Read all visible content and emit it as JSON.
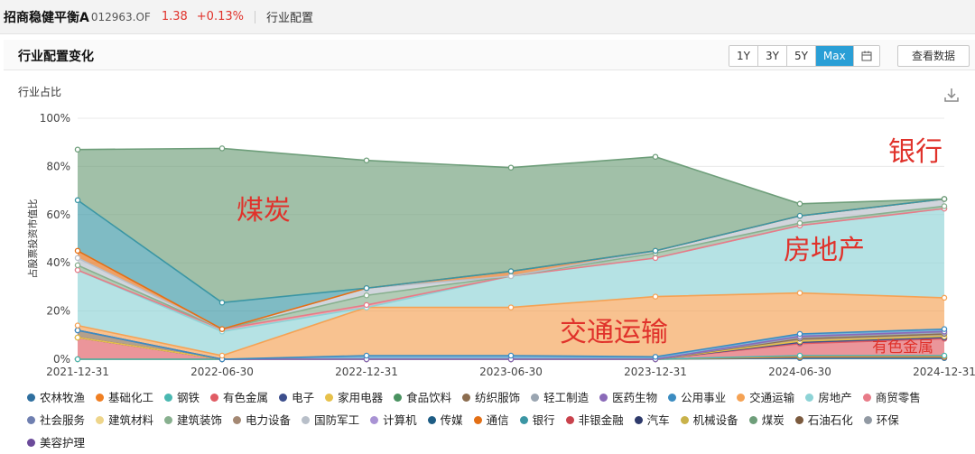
{
  "fund": {
    "name": "招商稳健平衡A",
    "code": "012963.OF",
    "price": "1.38",
    "change": "+0.13%",
    "section": "行业配置"
  },
  "panel": {
    "title": "行业配置变化",
    "range_buttons": [
      "1Y",
      "3Y",
      "5Y",
      "Max"
    ],
    "active_range": "Max",
    "view_data_label": "查看数据"
  },
  "chart_data": {
    "type": "area",
    "stacked": true,
    "subtitle": "行业占比",
    "ylabel": "占股票投资市值比",
    "ylim": [
      0,
      100
    ],
    "y_ticks": [
      "0%",
      "20%",
      "40%",
      "60%",
      "80%",
      "100%"
    ],
    "x": [
      "2021-12-31",
      "2022-06-30",
      "2022-12-31",
      "2023-06-30",
      "2023-12-31",
      "2024-06-30",
      "2024-12-31"
    ],
    "series": [
      {
        "name": "农林牧渔",
        "color": "#2f6f9f",
        "values": [
          0,
          0,
          0,
          0,
          0,
          0.5,
          0.5
        ]
      },
      {
        "name": "基础化工",
        "color": "#f07f22",
        "values": [
          0,
          0,
          0,
          0,
          0,
          0.5,
          0.5
        ]
      },
      {
        "name": "钢铁",
        "color": "#4ab8b1",
        "values": [
          0,
          0,
          0,
          0,
          0,
          0.5,
          0.5
        ]
      },
      {
        "name": "有色金属",
        "color": "#e05c64",
        "values": [
          9,
          0,
          0,
          0,
          0,
          5,
          7
        ]
      },
      {
        "name": "电子",
        "color": "#3c4e8c",
        "values": [
          0,
          0,
          0,
          0,
          0,
          0.5,
          0.5
        ]
      },
      {
        "name": "家用电器",
        "color": "#e7c14a",
        "values": [
          0,
          0,
          0,
          0,
          0,
          0.5,
          0.5
        ]
      },
      {
        "name": "食品饮料",
        "color": "#4a9260",
        "values": [
          0,
          0,
          0,
          0,
          0,
          0,
          0
        ]
      },
      {
        "name": "纺织服饰",
        "color": "#8c6d4f",
        "values": [
          3,
          0,
          0,
          0,
          0,
          1,
          1
        ]
      },
      {
        "name": "轻工制造",
        "color": "#9aa5b1",
        "values": [
          0,
          0,
          0,
          0,
          0,
          0.5,
          0.5
        ]
      },
      {
        "name": "医药生物",
        "color": "#8a6ab8",
        "values": [
          0,
          0,
          0,
          0,
          0,
          0.5,
          0.5
        ]
      },
      {
        "name": "公用事业",
        "color": "#3b8cc1",
        "values": [
          0,
          0,
          1.5,
          1.5,
          1,
          1,
          1
        ]
      },
      {
        "name": "交通运输",
        "color": "#f5a254",
        "values": [
          2,
          1.5,
          20,
          20,
          25,
          17,
          13
        ]
      },
      {
        "name": "房地产",
        "color": "#8dd3d6",
        "values": [
          23,
          10,
          0,
          13,
          16,
          28,
          37
        ]
      },
      {
        "name": "商贸零售",
        "color": "#e87b88",
        "values": [
          0,
          1,
          1,
          0,
          0,
          0,
          0
        ]
      },
      {
        "name": "社会服务",
        "color": "#6f7fb0",
        "values": [
          0,
          0,
          0,
          0,
          0,
          0,
          0
        ]
      },
      {
        "name": "建筑材料",
        "color": "#eed58a",
        "values": [
          0,
          0,
          0,
          0,
          0,
          0,
          0
        ]
      },
      {
        "name": "建筑装饰",
        "color": "#88b08f",
        "values": [
          2,
          0,
          4,
          0,
          2,
          1,
          1
        ]
      },
      {
        "name": "电力设备",
        "color": "#a48873",
        "values": [
          0,
          0,
          0,
          0,
          0,
          0,
          0
        ]
      },
      {
        "name": "国防军工",
        "color": "#b8bfc9",
        "values": [
          3,
          0,
          3,
          0,
          1,
          3,
          3
        ]
      },
      {
        "name": "计算机",
        "color": "#a993d4",
        "values": [
          0,
          0,
          0,
          0,
          0,
          0,
          0
        ]
      },
      {
        "name": "传媒",
        "color": "#1d5c84",
        "values": [
          0,
          0,
          0,
          0,
          0,
          0,
          0
        ]
      },
      {
        "name": "通信",
        "color": "#e36f15",
        "values": [
          3,
          0,
          0,
          2,
          0,
          0,
          0
        ]
      },
      {
        "name": "银行",
        "color": "#3b96a4",
        "values": [
          21,
          11,
          0,
          0,
          0,
          0,
          0
        ]
      },
      {
        "name": "非银金融",
        "color": "#c9424c",
        "values": [
          0,
          0,
          0,
          0,
          0,
          0,
          0
        ]
      },
      {
        "name": "汽车",
        "color": "#2e3a6b",
        "values": [
          0,
          0,
          0,
          0,
          0,
          0,
          0
        ]
      },
      {
        "name": "机械设备",
        "color": "#c9b24a",
        "values": [
          0,
          0,
          0,
          0,
          0,
          0,
          0
        ]
      },
      {
        "name": "煤炭",
        "color": "#6e9e7a",
        "values": [
          21,
          64,
          53,
          43,
          39,
          5,
          0
        ]
      },
      {
        "name": "石油石化",
        "color": "#7b5a3e",
        "values": [
          0,
          0,
          0,
          0,
          0,
          0,
          0
        ]
      },
      {
        "name": "环保",
        "color": "#9199a3",
        "values": [
          0,
          0,
          0,
          0,
          0,
          0,
          0
        ]
      },
      {
        "name": "美容护理",
        "color": "#6b4a9a",
        "values": [
          0,
          0,
          0,
          0,
          0,
          0,
          0
        ]
      }
    ],
    "annotations": [
      {
        "text": "煤炭",
        "color": "#e0322b"
      },
      {
        "text": "房地产",
        "color": "#e0322b"
      },
      {
        "text": "交通运输",
        "color": "#e0322b"
      },
      {
        "text": "银行",
        "color": "#e0322b"
      },
      {
        "text": "有色金属",
        "color": "#e0322b"
      }
    ],
    "legend_position": "bottom",
    "grid": true
  }
}
